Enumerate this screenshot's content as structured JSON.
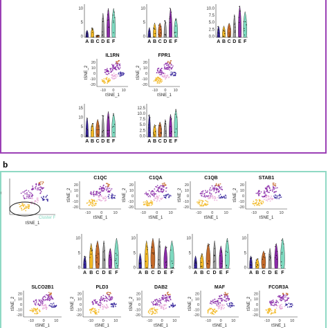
{
  "colors": {
    "A": "#33229a",
    "B": "#f2b824",
    "C": "#c46a2a",
    "D": "#999999",
    "E": "#8a2aa8",
    "F": "#7dd9bf",
    "frame_a": "#9b3fb5",
    "frame_b": "#8fd9c4"
  },
  "panel_a": {
    "tsne_plots": [
      {
        "id": "il1rn",
        "title": "IL1RN",
        "xlabel": "tSNE_1",
        "ylabel": "tSNE_2",
        "xticks": [
          "-10",
          "0",
          "10"
        ],
        "yticks": [
          "20",
          "10",
          "0",
          "-10",
          "-20"
        ]
      },
      {
        "id": "fpr1",
        "title": "FPR1",
        "xlabel": "tSNE_1",
        "ylabel": "tSNE_2",
        "xticks": [
          "-10",
          "0",
          "10"
        ],
        "yticks": [
          "20",
          "10",
          "0",
          "-10",
          "-20"
        ]
      }
    ],
    "violins_top": [
      {
        "id": "a-top-1",
        "yticks": [
          "10",
          "5",
          "0"
        ],
        "ymax": 13,
        "values": [
          3,
          4,
          1,
          10,
          12,
          12
        ]
      },
      {
        "id": "a-top-2",
        "yticks": [
          "10",
          "5",
          "0"
        ],
        "ymax": 13,
        "values": [
          4,
          6,
          6,
          7,
          12,
          8
        ]
      },
      {
        "id": "a-top-3",
        "yticks": [
          "10.0",
          "7.5",
          "5.0",
          "2.5",
          "0.0"
        ],
        "ymax": 11,
        "values": [
          4,
          4,
          5,
          8,
          11,
          9
        ]
      }
    ],
    "violins_bottom": [
      {
        "id": "a-bot-1",
        "yticks": [
          "15",
          "10",
          "5",
          "0"
        ],
        "ymax": 16,
        "values": [
          10,
          7,
          9,
          11,
          13,
          12
        ]
      },
      {
        "id": "a-bot-2",
        "yticks": [
          "12.5",
          "10.0",
          "7.5",
          "5.0",
          "2.5",
          "0.0"
        ],
        "ymax": 12.5,
        "values": [
          9,
          5,
          6,
          7,
          9,
          11
        ]
      }
    ],
    "categories": [
      "A",
      "B",
      "C",
      "D",
      "E",
      "F"
    ]
  },
  "panel_b": {
    "label": "b",
    "overview": {
      "xlabel": "tSNE_1",
      "ylabel": "tSNE_2",
      "cluster_label": "Cluster F"
    },
    "tsne_row1": [
      {
        "id": "c1qc",
        "title": "C1QC"
      },
      {
        "id": "c1qa",
        "title": "C1QA"
      },
      {
        "id": "c1qb",
        "title": "C1QB"
      },
      {
        "id": "stab1",
        "title": "STAB1"
      }
    ],
    "violins": [
      {
        "id": "b-v1",
        "yticks": [
          "10",
          "5",
          "0"
        ],
        "values": [
          5,
          10,
          11,
          11,
          8,
          12
        ]
      },
      {
        "id": "b-v2",
        "yticks": [
          "10",
          "5",
          "0"
        ],
        "values": [
          6,
          11,
          12,
          12,
          9,
          11
        ]
      },
      {
        "id": "b-v3",
        "yticks": [
          "10",
          "5",
          "0"
        ],
        "values": [
          5,
          6,
          10,
          11,
          9,
          12
        ]
      },
      {
        "id": "b-v4",
        "yticks": [
          "10",
          "5",
          "0"
        ],
        "values": [
          5,
          4,
          7,
          8,
          10,
          12
        ]
      }
    ],
    "tsne_row2": [
      {
        "id": "slco2b1",
        "title": "SLCO2B1"
      },
      {
        "id": "pld3",
        "title": "PLD3"
      },
      {
        "id": "dab2",
        "title": "DAB2"
      },
      {
        "id": "maf",
        "title": "MAF"
      },
      {
        "id": "fcgr3a",
        "title": "FCGR3A"
      }
    ],
    "tsne_xlabel": "tSNE_1",
    "tsne_ylabel": "tSNE_2",
    "xticks": [
      "-10",
      "0",
      "10"
    ],
    "yticks": [
      "20",
      "10",
      "0",
      "-10",
      "-20"
    ]
  }
}
